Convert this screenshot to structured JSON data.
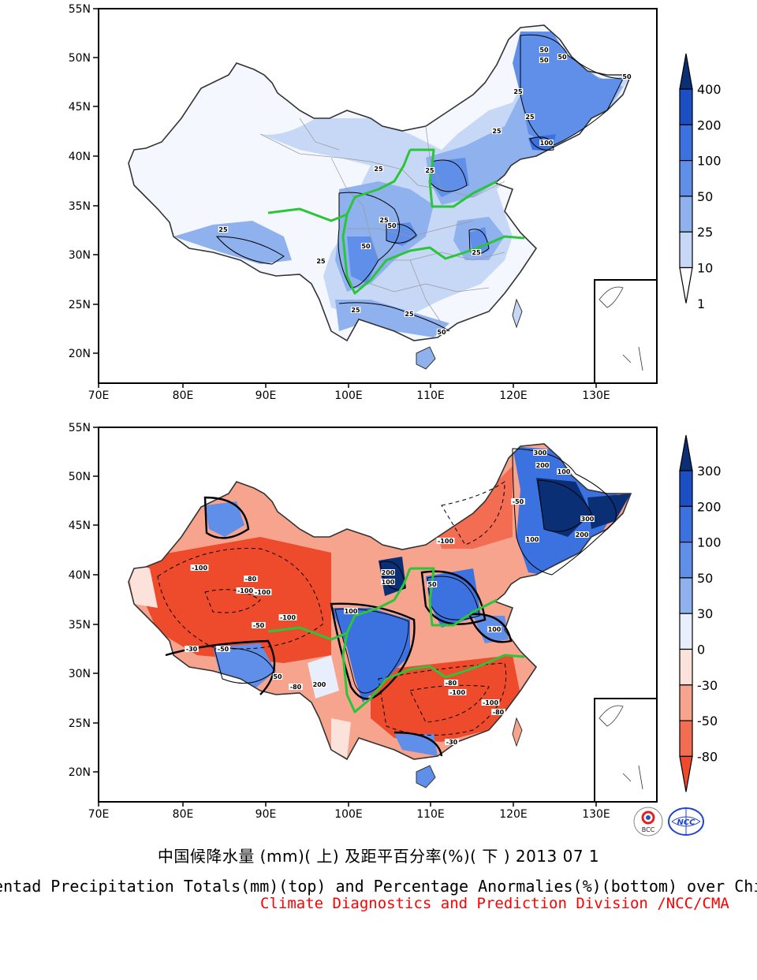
{
  "panels": [
    {
      "id": "top",
      "lat_ticks": [
        "55N",
        "50N",
        "45N",
        "40N",
        "35N",
        "30N",
        "25N",
        "20N"
      ],
      "lon_ticks": [
        "70E",
        "80E",
        "90E",
        "100E",
        "110E",
        "120E",
        "130E"
      ],
      "legend": {
        "labels": [
          "400",
          "200",
          "100",
          "50",
          "25",
          "10",
          "1"
        ],
        "colors": [
          "#0b2f75",
          "#1c4fc4",
          "#3c72e0",
          "#5f8fe8",
          "#8fb1ee",
          "#c6d8f6",
          "#ffffff"
        ]
      },
      "contour_labels": [
        "50",
        "50",
        "50",
        "25",
        "50",
        "25",
        "25",
        "100",
        "25",
        "25",
        "25",
        "50",
        "50",
        "25",
        "25",
        "25",
        "25",
        "25",
        "50"
      ]
    },
    {
      "id": "bottom",
      "lat_ticks": [
        "55N",
        "50N",
        "45N",
        "40N",
        "35N",
        "30N",
        "25N",
        "20N"
      ],
      "lon_ticks": [
        "70E",
        "80E",
        "90E",
        "100E",
        "110E",
        "120E",
        "130E"
      ],
      "legend": {
        "labels": [
          "300",
          "200",
          "100",
          "50",
          "30",
          "0",
          "-30",
          "-50",
          "-80"
        ],
        "colors": [
          "#0b2f75",
          "#1c4fc4",
          "#3c72e0",
          "#5f8fe8",
          "#8fb1ee",
          "#e8eefc",
          "#fbe3dc",
          "#f7a48e",
          "#f26d52",
          "#ee4a2c"
        ]
      },
      "contour_labels": [
        "300",
        "200",
        "100",
        "300",
        "200",
        "100",
        "-100",
        "-80",
        "-100",
        "-100",
        "-100",
        "-50",
        "-30",
        "-50",
        "200",
        "100",
        "100",
        "50",
        "-80",
        "-100",
        "-80",
        "-100",
        "-30",
        "100",
        "-50",
        "50",
        "-80",
        "200",
        "-100"
      ]
    }
  ],
  "caption": {
    "cn": "中国候降水量 (mm)( 上) 及距平百分率(%)( 下 ) 2013 07 1",
    "en": "Pentad Precipitation Totals(mm)(top) and Percentage Anormalies(%)(bottom) over China",
    "credit": "Climate Diagnostics and Prediction Division /NCC/CMA"
  },
  "logos": {
    "left": "BCC",
    "right": "NCC"
  }
}
